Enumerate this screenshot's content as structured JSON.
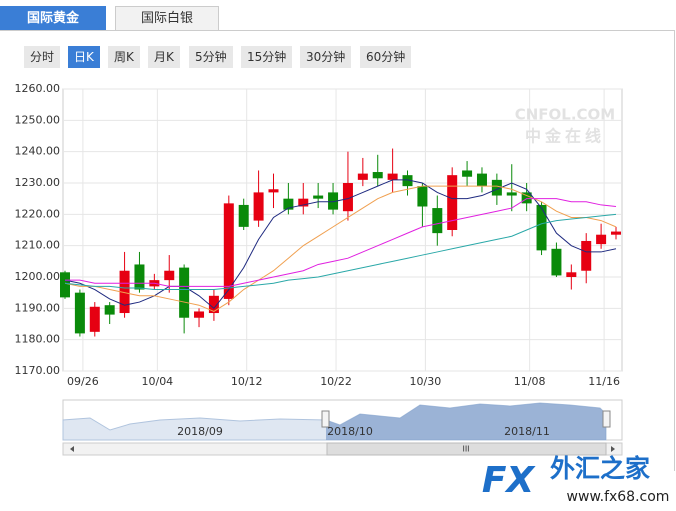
{
  "tabs": [
    {
      "label": "国际黄金",
      "active": true
    },
    {
      "label": "国际白银",
      "active": false
    }
  ],
  "periods": {
    "items": [
      "分时",
      "日K",
      "周K",
      "月K",
      "5分钟",
      "15分钟",
      "30分钟",
      "60分钟"
    ],
    "active": 1
  },
  "chart_data": {
    "type": "candlestick",
    "categories": [
      null,
      "09/26",
      null,
      null,
      null,
      null,
      "10/04",
      null,
      null,
      null,
      null,
      null,
      "10/12",
      null,
      null,
      null,
      null,
      null,
      "10/22",
      null,
      null,
      null,
      null,
      null,
      "10/30",
      null,
      null,
      null,
      null,
      null,
      null,
      "11/08",
      null,
      null,
      null,
      null,
      "11/16",
      null
    ],
    "open": [
      1201.5,
      1195,
      1182.5,
      1191,
      1188.5,
      1204,
      1197,
      1199,
      1203,
      1187,
      1188.5,
      1193,
      1223,
      1218,
      1227,
      1225,
      1222.5,
      1226,
      1227,
      1221,
      1231,
      1233.5,
      1231,
      1232.5,
      1229,
      1222,
      1215,
      1234,
      1233,
      1231,
      1227,
      1227,
      1223,
      1209,
      1200,
      1202,
      1210.5,
      1213.5
    ],
    "high": [
      1202,
      1196,
      1192,
      1192,
      1208,
      1208,
      1201,
      1207,
      1204,
      1190,
      1196,
      1226,
      1225,
      1234,
      1233,
      1230,
      1230,
      1230,
      1230,
      1240,
      1238,
      1239,
      1241,
      1234,
      1230,
      1226,
      1235,
      1237,
      1235,
      1233,
      1236,
      1230,
      1224,
      1211,
      1204,
      1214,
      1217,
      1216
    ],
    "low": [
      1193,
      1181,
      1181,
      1185,
      1187,
      1195,
      1196,
      1195,
      1182,
      1184,
      1186,
      1191,
      1215,
      1216,
      1222,
      1220,
      1220,
      1222,
      1220,
      1218,
      1229,
      1229,
      1227,
      1226,
      1216,
      1210,
      1213,
      1229,
      1227,
      1223,
      1221,
      1221,
      1207,
      1200,
      1196,
      1198,
      1209,
      1212
    ],
    "close": [
      1193.5,
      1182,
      1190.5,
      1188,
      1202,
      1196,
      1199,
      1202,
      1187,
      1189,
      1194,
      1223.5,
      1216,
      1227,
      1228,
      1221.5,
      1225,
      1225,
      1221.5,
      1230,
      1233,
      1231.5,
      1233,
      1229,
      1222.5,
      1214,
      1232.5,
      1232,
      1229,
      1226,
      1226,
      1223.5,
      1208.5,
      1200.5,
      1201.5,
      1211.5,
      1213.5,
      1214.5
    ],
    "up_color": "#e60012",
    "down_color": "#0a8a0a",
    "ma_lines": [
      {
        "color": "#1f2a80",
        "values": [
          1199,
          1198,
          1196,
          1193,
          1191,
          1192,
          1194,
          1197,
          1197,
          1194,
          1190,
          1196,
          1203,
          1212,
          1219,
          1222,
          1223,
          1224,
          1224,
          1225,
          1227,
          1229,
          1231,
          1231,
          1230,
          1227,
          1225,
          1225,
          1226,
          1228,
          1230,
          1228,
          1222,
          1214,
          1210,
          1208,
          1208,
          1209
        ]
      },
      {
        "color": "#f0a050",
        "values": [
          1198,
          1197,
          1197,
          1196,
          1195,
          1194,
          1194,
          1193,
          1192,
          1191,
          1189,
          1192,
          1196,
          1199,
          1202,
          1206,
          1210,
          1213,
          1216,
          1219,
          1222,
          1225,
          1227,
          1228,
          1229,
          1229,
          1229,
          1229,
          1229,
          1229,
          1228,
          1226,
          1224,
          1221,
          1219,
          1219,
          1218,
          1216
        ]
      },
      {
        "color": "#e020e0",
        "values": [
          1199,
          1199,
          1198,
          1198,
          1198,
          1198,
          1198,
          1197,
          1197,
          1197,
          1197,
          1197,
          1198,
          1199,
          1200,
          1201,
          1202,
          1204,
          1205,
          1206,
          1208,
          1210,
          1212,
          1214,
          1216,
          1217,
          1218,
          1219,
          1220,
          1221,
          1222,
          1225,
          1225,
          1225,
          1224,
          1224,
          1223,
          1222.5
        ]
      },
      {
        "color": "#2aa8a8",
        "values": [
          1198,
          1197.5,
          1197,
          1197,
          1196.5,
          1196.5,
          1196,
          1196,
          1196,
          1196,
          1196,
          1196.5,
          1197,
          1197.5,
          1198,
          1199,
          1199.5,
          1200,
          1201,
          1202,
          1203,
          1204,
          1205,
          1206,
          1207,
          1208,
          1209,
          1210,
          1211,
          1212,
          1213,
          1215,
          1217,
          1218,
          1218.5,
          1219,
          1219.5,
          1220
        ]
      }
    ],
    "ylim": [
      1170,
      1260
    ],
    "yticks": [
      {
        "value": 1170,
        "label": "1170.00"
      },
      {
        "value": 1180,
        "label": "1180.00"
      },
      {
        "value": 1190,
        "label": "1190.00"
      },
      {
        "value": 1200,
        "label": "1200.00"
      },
      {
        "value": 1210,
        "label": "1210.00"
      },
      {
        "value": 1220,
        "label": "1220.00"
      },
      {
        "value": 1230,
        "label": "1230.00"
      },
      {
        "value": 1240,
        "label": "1240.00"
      },
      {
        "value": 1250,
        "label": "1250.00"
      },
      {
        "value": 1260,
        "label": "1260.00"
      }
    ],
    "grid": true,
    "watermark": [
      "CNFOL.COM",
      "中金在线"
    ]
  },
  "navigator": {
    "labels": [
      "2018/09",
      "2018/10",
      "2018/11"
    ],
    "scroll_grip": "III"
  },
  "logo": {
    "brand": "FX",
    "name": "外汇之家",
    "url": "www.fx68.com"
  }
}
